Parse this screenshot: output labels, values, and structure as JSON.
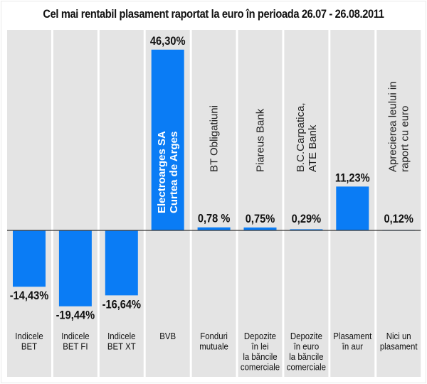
{
  "chart_data": {
    "type": "bar",
    "title": "Cel mai rentabil plasament raportat la euro în perioada 26.07 - 26.08.2011",
    "xlabel": "",
    "ylabel": "",
    "unit": "%",
    "categories": [
      [
        "Indicele",
        "BET"
      ],
      [
        "Indicele",
        "BET FI"
      ],
      [
        "Indicele",
        "BET XT"
      ],
      [
        "BVB"
      ],
      [
        "Fonduri",
        "mutuale"
      ],
      [
        "Depozite",
        "în lei",
        "la băncile",
        "comerciale"
      ],
      [
        "Depozite",
        "în euro",
        "la băncile",
        "comerciale"
      ],
      [
        "Plasament",
        "în aur"
      ],
      [
        "Nici un",
        "plasament"
      ]
    ],
    "values": [
      -14.43,
      -19.44,
      -16.64,
      46.3,
      0.78,
      0.75,
      0.29,
      11.23,
      0.12
    ],
    "value_labels": [
      "-14,43%",
      "-19,44%",
      "-16,64%",
      "46,30%",
      "0,78 %",
      "0,75%",
      "0,29%",
      "11,23%",
      "0,12%"
    ],
    "instrument_labels": [
      [],
      [],
      [],
      [
        "Electroarges SA",
        "Curtea de Arges"
      ],
      [
        "BT Obligatiuni"
      ],
      [
        "Piareus Bank"
      ],
      [
        "B.C.Carpatica,",
        "ATE Bank"
      ],
      [],
      [
        "Aprecierea leului in",
        "raport cu euro"
      ]
    ],
    "colors": {
      "bar": "#0a7cf5",
      "panel": "#e4e4e4",
      "baseline": "#333333"
    },
    "grid": false,
    "legend": "none",
    "ylim": [
      -20,
      47
    ]
  }
}
